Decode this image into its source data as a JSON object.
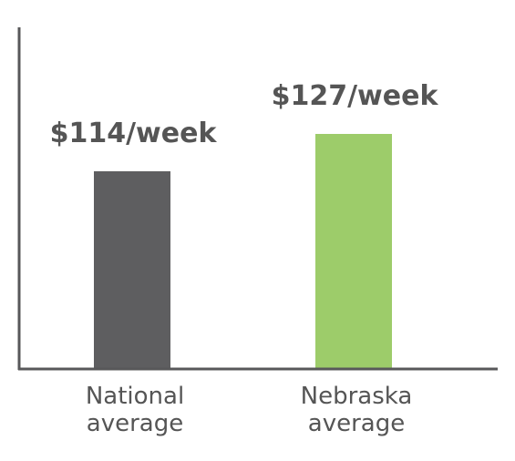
{
  "chart_data": {
    "type": "bar",
    "categories": [
      "National average",
      "Nebraska average"
    ],
    "category_lines": [
      [
        "National",
        "average"
      ],
      [
        "Nebraska",
        "average"
      ]
    ],
    "values": [
      114,
      127
    ],
    "value_labels": [
      "$114/week",
      "$127/week"
    ],
    "unit": "$/week",
    "ylim": [
      0,
      170
    ],
    "colors": [
      "#5e5e60",
      "#9dcc6a"
    ],
    "axis_color": "#58585a",
    "grid": false,
    "legend": "none"
  }
}
